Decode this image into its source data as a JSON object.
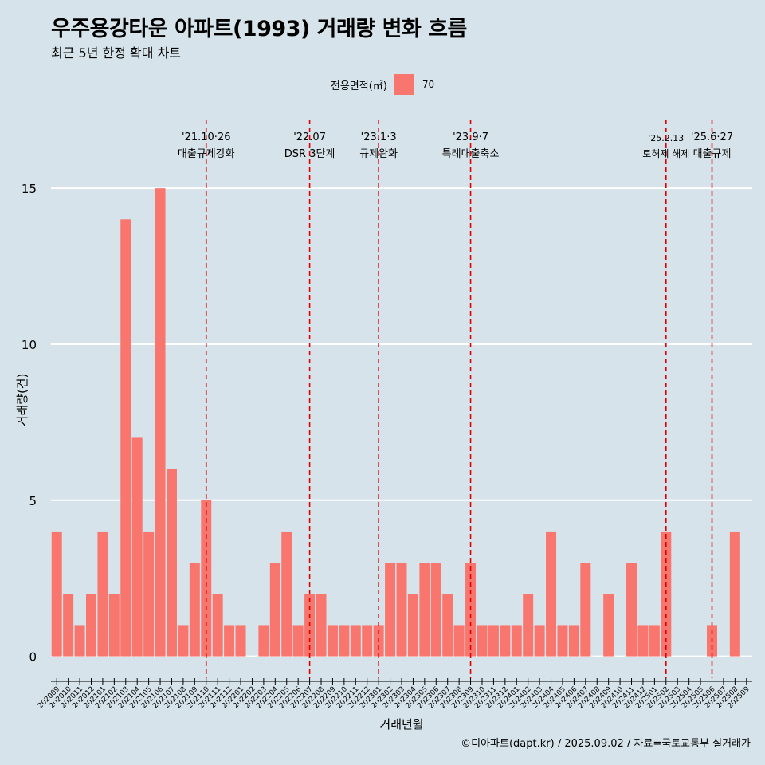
{
  "title": "우주용강타운 아파트(1993) 거래량 변화 흐름",
  "subtitle": "최근 5년 한정 확대 차트",
  "caption": "©디아파트(dapt.kr) / 2025.09.02 / 자료=국토교통부 실거래가",
  "legend": {
    "title": "전용면적(㎡)",
    "items": [
      {
        "label": "70",
        "color": "#F8766D"
      }
    ]
  },
  "chart_data": {
    "type": "bar",
    "xlabel": "거래년월",
    "ylabel": "거래량(건)",
    "ylim": [
      -0.7,
      17.2
    ],
    "yticks": [
      0,
      5,
      10,
      15
    ],
    "bar_color": "#F8766D",
    "categories": [
      "202009",
      "202010",
      "202011",
      "202012",
      "202101",
      "202102",
      "202103",
      "202104",
      "202105",
      "202106",
      "202107",
      "202108",
      "202109",
      "202110",
      "202111",
      "202112",
      "202201",
      "202202",
      "202203",
      "202204",
      "202205",
      "202206",
      "202207",
      "202208",
      "202209",
      "202210",
      "202211",
      "202212",
      "202301",
      "202302",
      "202303",
      "202304",
      "202305",
      "202306",
      "202307",
      "202308",
      "202309",
      "202310",
      "202311",
      "202312",
      "202401",
      "202402",
      "202403",
      "202404",
      "202405",
      "202406",
      "202407",
      "202408",
      "202409",
      "202410",
      "202411",
      "202412",
      "202501",
      "202502",
      "202503",
      "202504",
      "202505",
      "202506",
      "202507",
      "202508",
      "202509"
    ],
    "values": [
      4,
      2,
      1,
      2,
      4,
      2,
      14,
      7,
      4,
      15,
      6,
      1,
      3,
      5,
      2,
      1,
      1,
      0,
      1,
      3,
      4,
      1,
      2,
      2,
      1,
      1,
      1,
      1,
      1,
      3,
      3,
      2,
      3,
      3,
      2,
      1,
      3,
      1,
      1,
      1,
      1,
      2,
      1,
      4,
      1,
      1,
      3,
      0,
      2,
      0,
      3,
      1,
      1,
      4,
      0,
      0,
      0,
      1,
      0,
      4,
      0
    ],
    "annotations": [
      {
        "at": "202110",
        "date": "'21.10·26",
        "label": "대출규제강화"
      },
      {
        "at": "202207",
        "date": "'22.07",
        "label": "DSR 3단계"
      },
      {
        "at": "202301",
        "date": "'23.1·3",
        "label": "규제완화"
      },
      {
        "at": "202309",
        "date": "'23.9·7",
        "label": "특례대출축소"
      },
      {
        "at": "202502",
        "date": "'25.2.13",
        "label": "토허제 해제"
      },
      {
        "at": "202506",
        "date": "'25.6·27",
        "label": "대출규제"
      }
    ]
  }
}
